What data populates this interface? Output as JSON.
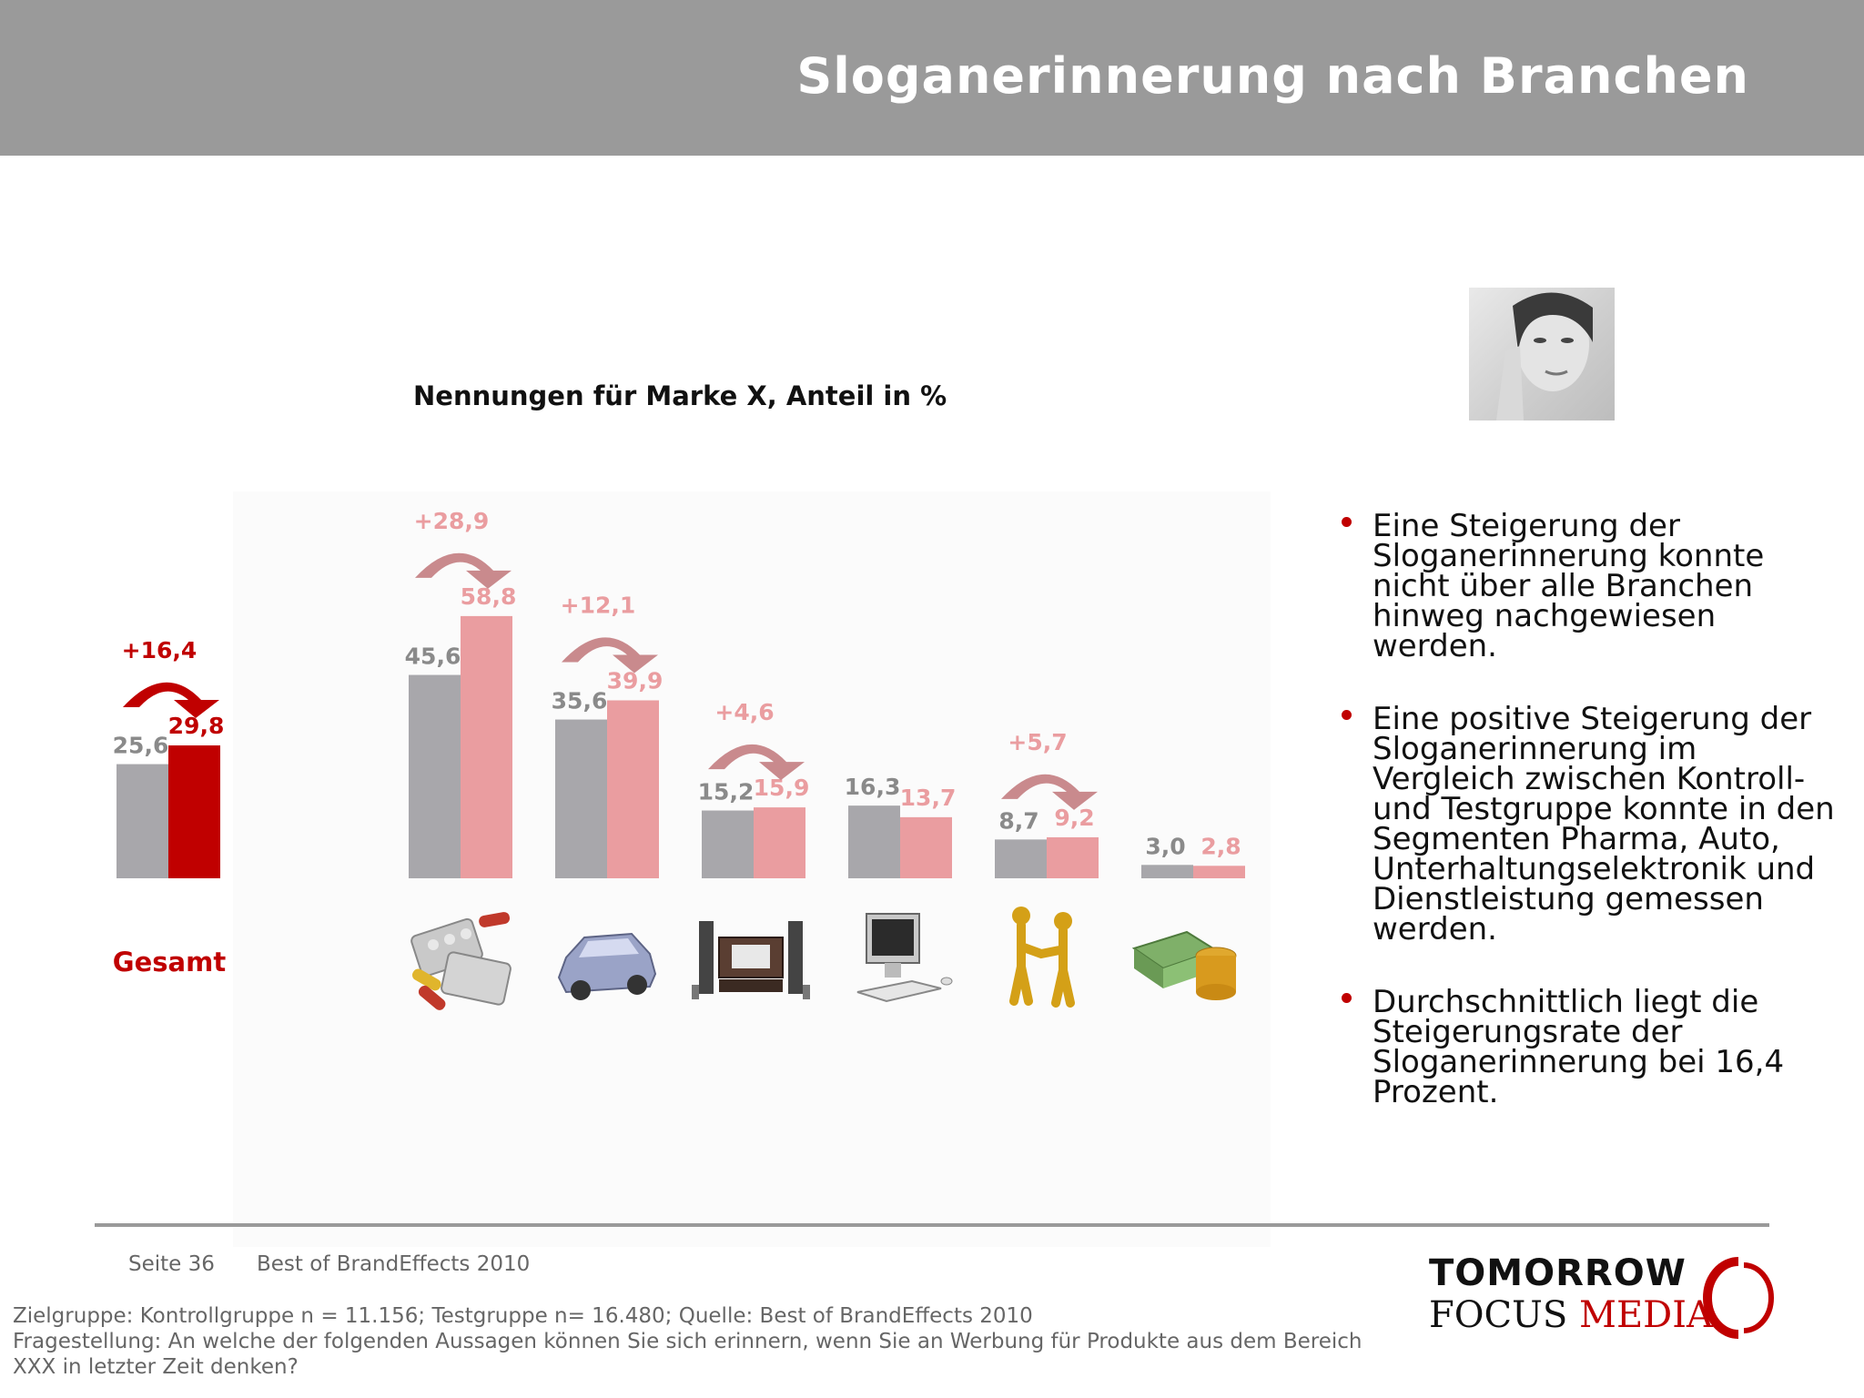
{
  "header": {
    "title": "Sloganerinnerung nach Branchen"
  },
  "chart_data": {
    "type": "bar",
    "title": "Nennungen für Marke X, Anteil in %",
    "categories": [
      "Gesamt",
      "",
      "",
      "",
      "",
      "",
      ""
    ],
    "category_icons": [
      "",
      "pills-icon",
      "car-icon",
      "hifi-system-icon",
      "computer-icon",
      "handshake-icon",
      "money-icon"
    ],
    "series": [
      {
        "values": [
          25.6,
          45.6,
          35.6,
          15.2,
          16.3,
          8.7,
          3.0
        ],
        "labels": [
          "25,6",
          "45,6",
          "35,6",
          "15,2",
          "16,3",
          "8,7",
          "3,0"
        ],
        "color": "#a8a7ab"
      },
      {
        "values": [
          29.8,
          58.8,
          39.9,
          15.9,
          13.7,
          9.2,
          2.8
        ],
        "labels": [
          "29,8",
          "58,8",
          "39,9",
          "15,9",
          "13,7",
          "9,2",
          "2,8"
        ],
        "colors": [
          "#c00000",
          "#ea9da0",
          "#ea9da0",
          "#ea9da0",
          "#ea9da0",
          "#ea9da0",
          "#ea9da0"
        ]
      }
    ],
    "increases": [
      "+16,4",
      "+28,9",
      "+12,1",
      "+4,6",
      "",
      "+5,7",
      ""
    ],
    "ylim": [
      0,
      60
    ],
    "grid": false,
    "legend": "none"
  },
  "bullets": [
    "Eine Steigerung der Sloganerinnerung konnte nicht über alle Branchen hinweg nachgewiesen werden.",
    "Eine positive Steigerung der Sloganerinnerung im Vergleich zwischen Kontroll- und Testgruppe konnte in den Segmenten Pharma, Auto, Unterhaltungselektronik und Dienstleistung gemessen werden.",
    "Durchschnittlich liegt die Steigerungsrate der Sloganerinnerung bei 16,4 Prozent."
  ],
  "footer": {
    "page": "Seite 36",
    "source": "Best of BrandEffects 2010",
    "notes": [
      "Zielgruppe: Kontrollgruppe n = 11.156; Testgruppe n= 16.480; Quelle: Best of BrandEffects 2010",
      "Fragestellung: An welche der folgenden Aussagen können Sie sich erinnern, wenn Sie an Werbung für Produkte aus dem Bereich XXX in letzter Zeit denken?"
    ]
  },
  "logo": {
    "line1": "TOMORROW",
    "line2a": "FOCUS",
    "line2b": "MEDIA"
  },
  "colors": {
    "header": "#9a9a9a",
    "accent": "#c00000",
    "control": "#a8a7ab",
    "test": "#ea9da0",
    "arrow": "#c98a8d"
  }
}
